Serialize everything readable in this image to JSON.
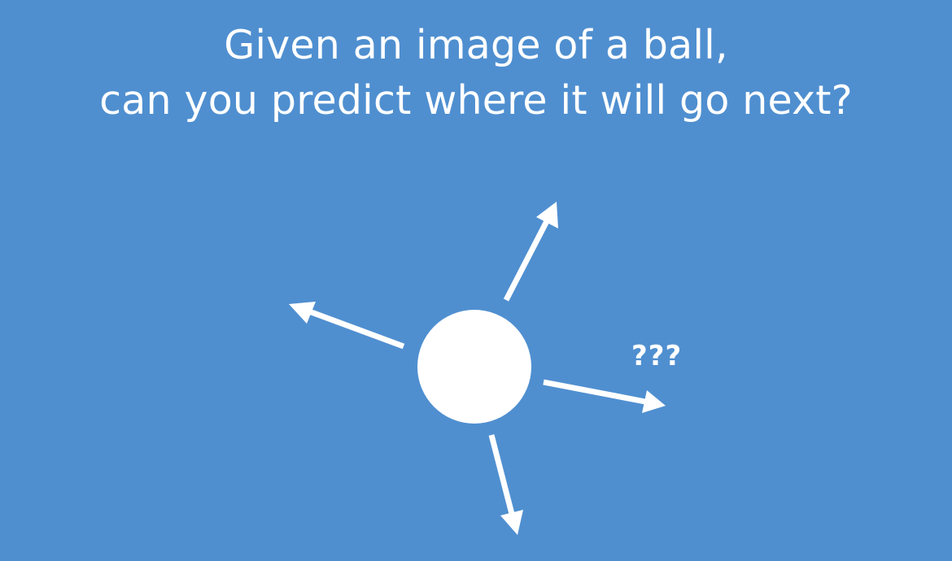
{
  "slide": {
    "title_lines": [
      "Given an image of a ball,",
      "can you predict where it will go next?"
    ],
    "question_label": "???"
  },
  "colors": {
    "background": "#4f8fd0",
    "foreground": "#ffffff"
  }
}
